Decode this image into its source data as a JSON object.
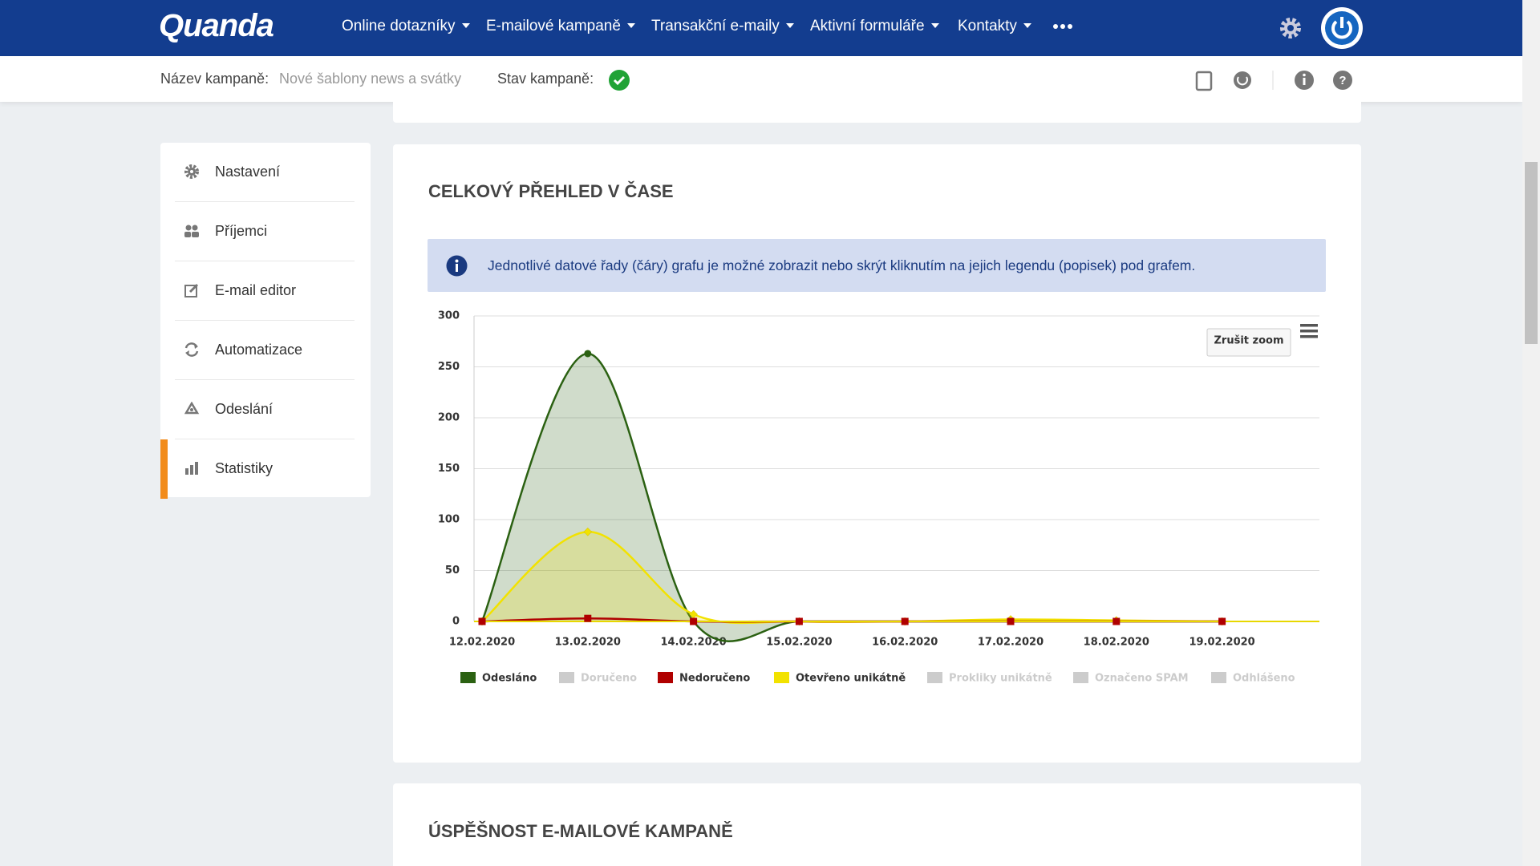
{
  "nav": {
    "logo": "Quanda",
    "items": [
      "Online dotazníky",
      "E-mailové kampaně",
      "Transakční e-maily",
      "Aktivní formuláře",
      "Kontakty"
    ]
  },
  "campaign": {
    "name_label": "Název kampaně:",
    "name": "Nové šablony news a svátky",
    "status_label": "Stav kampaně:"
  },
  "sidebar": {
    "items": [
      "Nastavení",
      "Příjemci",
      "E-mail editor",
      "Automatizace",
      "Odeslání",
      "Statistiky"
    ],
    "active": 5
  },
  "overview": {
    "title": "CELKOVÝ PŘEHLED V ČASE",
    "info": "Jednotlivé datové řady (čáry) grafu je možné zobrazit nebo skrýt kliknutím na jejich legendu (popisek) pod grafem."
  },
  "chart_data": {
    "type": "areaspline",
    "categories": [
      "12.02.2020",
      "13.02.2020",
      "14.02.2020",
      "15.02.2020",
      "16.02.2020",
      "17.02.2020",
      "18.02.2020",
      "19.02.2020"
    ],
    "ylim": [
      0,
      300
    ],
    "yticks": [
      0,
      50,
      100,
      150,
      200,
      250,
      300
    ],
    "grid": true,
    "reset_zoom": "Zrušit zoom",
    "series": [
      {
        "name": "Odesláno",
        "color": "#2b6112",
        "visible": true,
        "area": true,
        "values": [
          0,
          263,
          0,
          0,
          0,
          0,
          0,
          0
        ]
      },
      {
        "name": "Doručeno",
        "color": "#cccccc",
        "visible": false
      },
      {
        "name": "Nedoručeno",
        "color": "#b00000",
        "visible": true,
        "area": false,
        "values": [
          0,
          3,
          0,
          0,
          0,
          0,
          0,
          0
        ]
      },
      {
        "name": "Otevřeno unikátně",
        "color": "#f2e200",
        "visible": true,
        "area": true,
        "values": [
          0,
          88,
          7,
          0,
          0,
          2,
          1,
          0
        ]
      },
      {
        "name": "Prokliky unikátně",
        "color": "#cccccc",
        "visible": false
      },
      {
        "name": "Označeno SPAM",
        "color": "#cccccc",
        "visible": false
      },
      {
        "name": "Odhlášeno",
        "color": "#cccccc",
        "visible": false
      }
    ]
  },
  "success": {
    "title": "ÚSPĚŠNOST E-MAILOVÉ KAMPANĚ"
  }
}
